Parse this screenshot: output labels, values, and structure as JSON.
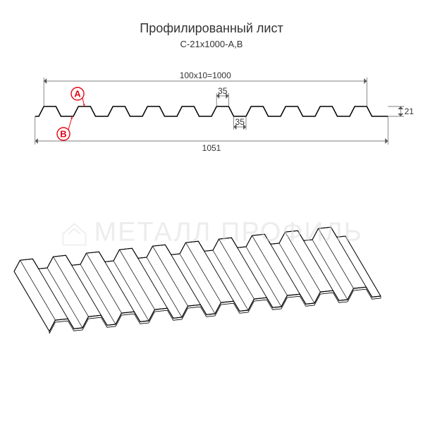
{
  "title": "Профилированный лист",
  "subtitle": "С-21х1000-А,В",
  "watermark": "МЕТАЛЛ ПРОФИЛЬ",
  "section": {
    "type": "technical-profile",
    "n_waves": 10,
    "dimensions": {
      "top_width_label": "100x10=1000",
      "rib_top_label": "35",
      "rib_bottom_label": "35",
      "height_label": "21",
      "bottom_width_label": "1051"
    },
    "markers": {
      "A": "A",
      "B": "B"
    },
    "colors": {
      "profile_stroke": "#000000",
      "dim_stroke": "#555555",
      "marker_stroke": "#e30613",
      "background": "#ffffff"
    },
    "stroke_width": 1.5,
    "dim_stroke_width": 0.7
  },
  "iso_view": {
    "n_ribs": 10,
    "stroke": "#000000",
    "stroke_width": 1,
    "fill": "#ffffff"
  }
}
